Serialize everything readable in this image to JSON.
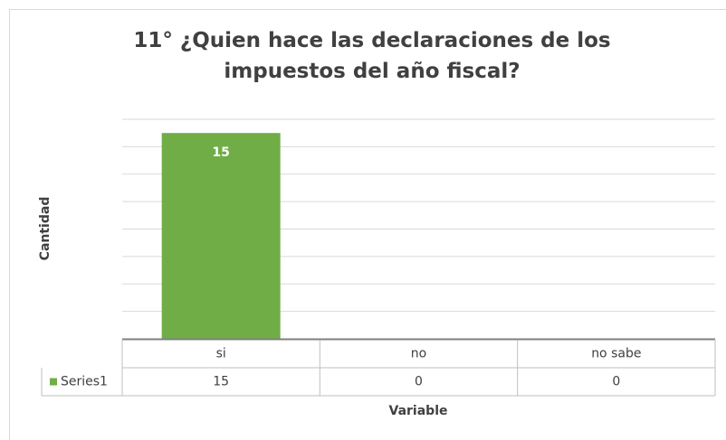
{
  "chart_data": {
    "type": "bar",
    "title": "11° ¿Quien hace las declaraciones de los impuestos del año fiscal?",
    "categories": [
      "si",
      "no",
      "no sabe"
    ],
    "series": [
      {
        "name": "Series1",
        "color": "#70ad47",
        "values": [
          15,
          0,
          0
        ]
      }
    ],
    "ylim": [
      0,
      16
    ],
    "yticks": [
      0,
      2,
      4,
      6,
      8,
      10,
      12,
      14,
      16
    ],
    "show_tick_labels": false,
    "grid": true,
    "data_table": true,
    "xlabel": "Variable",
    "ylabel": "Cantidad"
  }
}
